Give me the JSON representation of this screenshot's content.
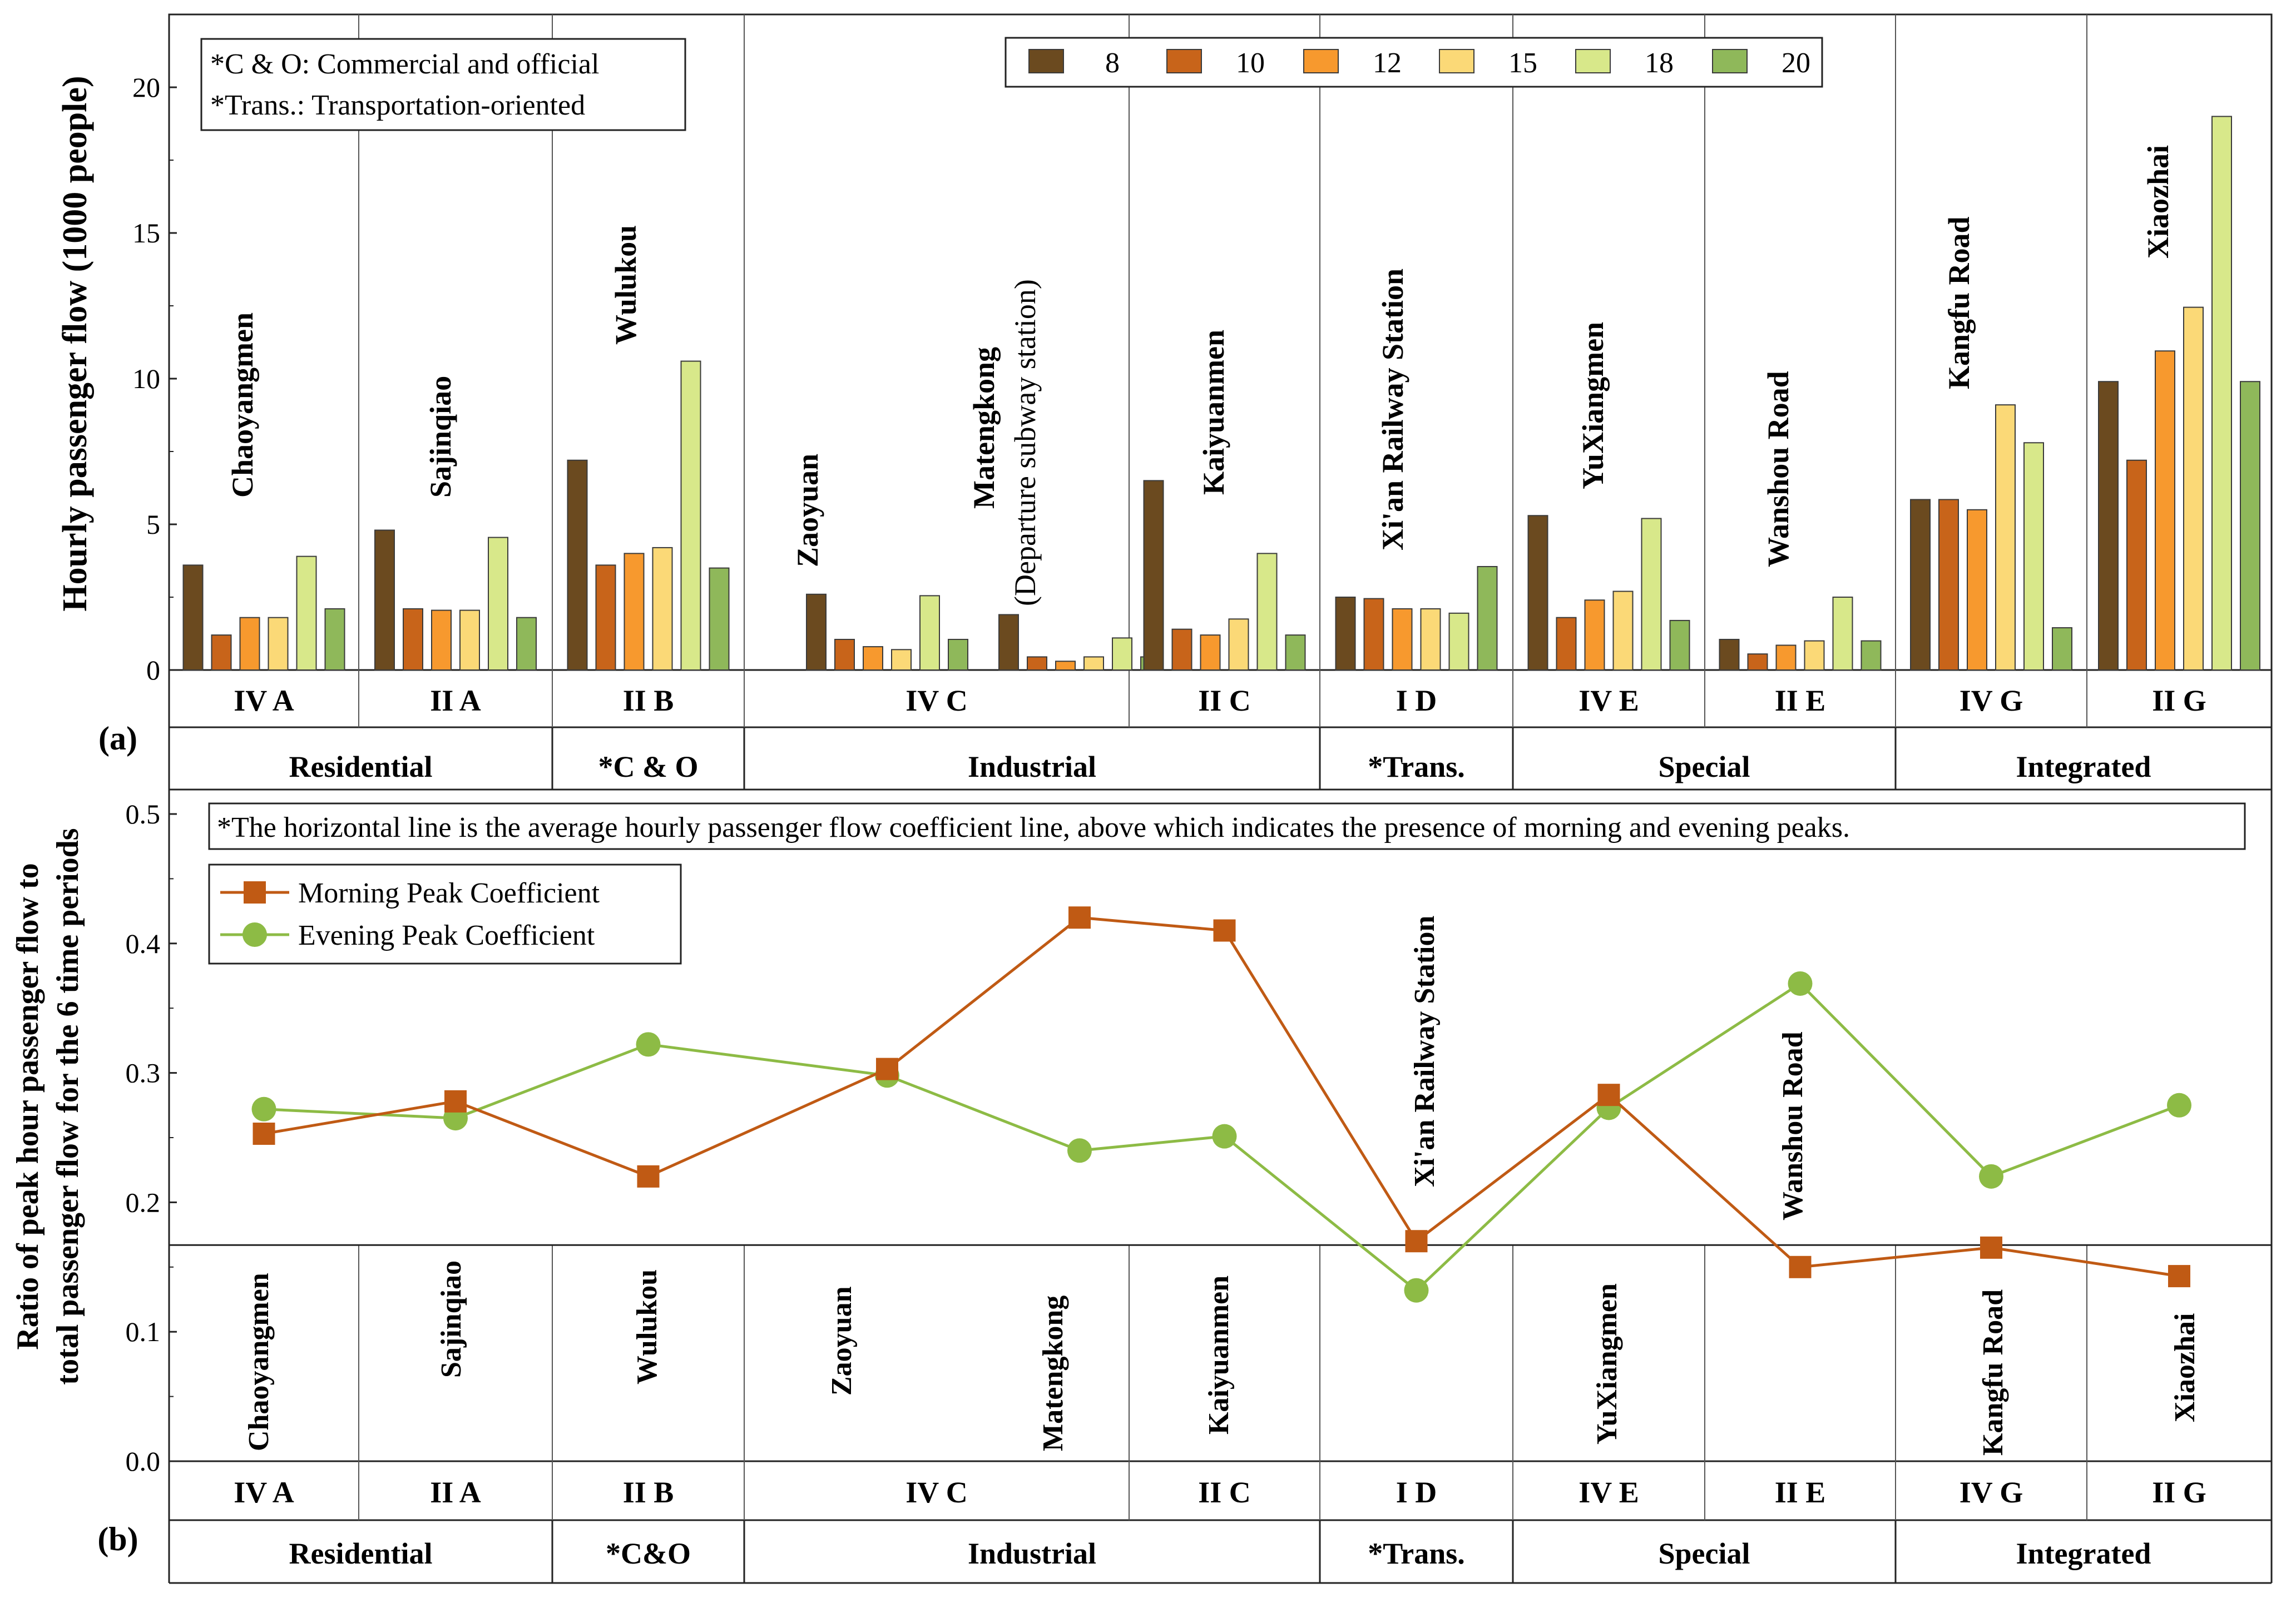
{
  "chart_data": [
    {
      "id": "a",
      "type": "bar",
      "panel_label": "(a)",
      "ylabel": "Hourly passenger flow (1000 people)",
      "ylim": [
        0,
        22.5
      ],
      "yticks": [
        "0",
        "5",
        "10",
        "15",
        "20"
      ],
      "legend_position": "top-right",
      "legend": [
        {
          "name": "8",
          "color": "#6b4a1f"
        },
        {
          "name": "10",
          "color": "#c8641a"
        },
        {
          "name": "12",
          "color": "#f7992e"
        },
        {
          "name": "15",
          "color": "#fbd977"
        },
        {
          "name": "18",
          "color": "#d8e88a"
        },
        {
          "name": "20",
          "color": "#8fb85a"
        }
      ],
      "notes": [
        "*C & O: Commercial and official",
        "*Trans.: Transportation-oriented"
      ],
      "stations": [
        {
          "name": "Chaoyangmen",
          "code": "IV A",
          "values": [
            3.6,
            1.2,
            1.8,
            1.8,
            3.9,
            2.1
          ]
        },
        {
          "name": "Sajinqiao",
          "code": "II A",
          "values": [
            4.8,
            2.1,
            2.05,
            2.05,
            4.55,
            1.8
          ]
        },
        {
          "name": "Wulukou",
          "code": "II B",
          "values": [
            7.2,
            3.6,
            4.0,
            4.2,
            10.6,
            3.5
          ]
        },
        {
          "name": "Zaoyuan",
          "code": "",
          "values": [
            2.6,
            1.05,
            0.8,
            0.7,
            2.55,
            1.05
          ]
        },
        {
          "name": "Matengkong",
          "subname": "(Departure subway station)",
          "code": "",
          "values": [
            1.9,
            0.45,
            0.3,
            0.45,
            1.1,
            0.45
          ]
        },
        {
          "name": "Kaiyuanmen",
          "code": "II C",
          "values": [
            6.5,
            1.4,
            1.2,
            1.75,
            4.0,
            1.2
          ]
        },
        {
          "name": "Xi'an Railway Station",
          "code": "I D",
          "values": [
            2.5,
            2.45,
            2.1,
            2.1,
            1.95,
            3.55
          ]
        },
        {
          "name": "YuXiangmen",
          "code": "IV E",
          "values": [
            5.3,
            1.8,
            2.4,
            2.7,
            5.2,
            1.7
          ]
        },
        {
          "name": "Wanshou Road",
          "code": "II E",
          "values": [
            1.05,
            0.55,
            0.85,
            1.0,
            2.5,
            1.0
          ]
        },
        {
          "name": "Kangfu Road",
          "code": "IV G",
          "values": [
            5.85,
            5.85,
            5.5,
            9.1,
            7.8,
            1.45
          ]
        },
        {
          "name": "Xiaozhai",
          "code": "II G",
          "values": [
            9.9,
            7.2,
            10.95,
            12.45,
            19.0,
            9.9
          ]
        }
      ],
      "group_codes": [
        {
          "label": "IV A",
          "stations": [
            0,
            0
          ]
        },
        {
          "label": "II A",
          "stations": [
            1,
            1
          ]
        },
        {
          "label": "II B",
          "stations": [
            2,
            2
          ]
        },
        {
          "label": "IV C",
          "stations": [
            3,
            4
          ]
        },
        {
          "label": "II C",
          "stations": [
            5,
            5
          ]
        },
        {
          "label": "I D",
          "stations": [
            6,
            6
          ]
        },
        {
          "label": "IV E",
          "stations": [
            7,
            7
          ]
        },
        {
          "label": "II E",
          "stations": [
            8,
            8
          ]
        },
        {
          "label": "IV G",
          "stations": [
            9,
            9
          ]
        },
        {
          "label": "II G",
          "stations": [
            10,
            10
          ]
        }
      ],
      "categories_row": [
        {
          "label": "Residential",
          "stations": [
            0,
            1
          ]
        },
        {
          "label": "*C & O",
          "stations": [
            2,
            2
          ]
        },
        {
          "label": "Industrial",
          "stations": [
            3,
            5
          ]
        },
        {
          "label": "*Trans.",
          "stations": [
            6,
            6
          ]
        },
        {
          "label": "Special",
          "stations": [
            7,
            8
          ]
        },
        {
          "label": "Integrated",
          "stations": [
            9,
            10
          ]
        }
      ]
    },
    {
      "id": "b",
      "type": "line",
      "panel_label": "(b)",
      "ylabel_line1": "Ratio of peak hour passenger flow to",
      "ylabel_line2": "total passenger flow for the 6 time periods",
      "ylim": [
        0,
        0.5
      ],
      "yticks": [
        "0.0",
        "0.1",
        "0.2",
        "0.3",
        "0.4",
        "0.5"
      ],
      "reference_line": 0.167,
      "note": "*The horizontal line is the average hourly passenger flow coefficient line, above which indicates the presence of morning and evening peaks.",
      "legend_position": "top-left",
      "series": [
        {
          "name": "Morning Peak Coefficient",
          "color": "#c05a14",
          "marker": "square",
          "values": [
            0.253,
            0.278,
            0.22,
            0.303,
            0.42,
            0.41,
            0.17,
            0.283,
            0.15,
            0.165,
            0.143
          ]
        },
        {
          "name": "Evening Peak Coefficient",
          "color": "#8dbb45",
          "marker": "circle",
          "values": [
            0.272,
            0.265,
            0.322,
            0.298,
            0.24,
            0.251,
            0.132,
            0.273,
            0.369,
            0.22,
            0.275
          ]
        }
      ],
      "station_labels": [
        "Chaoyangmen",
        "Sajinqiao",
        "Wulukou",
        "Zaoyuan",
        "Matengkong",
        "Kaiyuanmen",
        "Xi'an Railway Station",
        "YuXiangmen",
        "Wanshou Road",
        "Kangfu Road",
        "Xiaozhai"
      ],
      "group_codes": [
        {
          "label": "IV A",
          "stations": [
            0,
            0
          ]
        },
        {
          "label": "II A",
          "stations": [
            1,
            1
          ]
        },
        {
          "label": "II B",
          "stations": [
            2,
            2
          ]
        },
        {
          "label": "IV C",
          "stations": [
            3,
            4
          ]
        },
        {
          "label": "II C",
          "stations": [
            5,
            5
          ]
        },
        {
          "label": "I D",
          "stations": [
            6,
            6
          ]
        },
        {
          "label": "IV E",
          "stations": [
            7,
            7
          ]
        },
        {
          "label": "II E",
          "stations": [
            8,
            8
          ]
        },
        {
          "label": "IV G",
          "stations": [
            9,
            9
          ]
        },
        {
          "label": "II G",
          "stations": [
            10,
            10
          ]
        }
      ],
      "categories_row": [
        {
          "label": "Residential",
          "stations": [
            0,
            1
          ]
        },
        {
          "label": "*C&O",
          "stations": [
            2,
            2
          ]
        },
        {
          "label": "Industrial",
          "stations": [
            3,
            5
          ]
        },
        {
          "label": "*Trans.",
          "stations": [
            6,
            6
          ]
        },
        {
          "label": "Special",
          "stations": [
            7,
            8
          ]
        },
        {
          "label": "Integrated",
          "stations": [
            9,
            10
          ]
        }
      ]
    }
  ]
}
